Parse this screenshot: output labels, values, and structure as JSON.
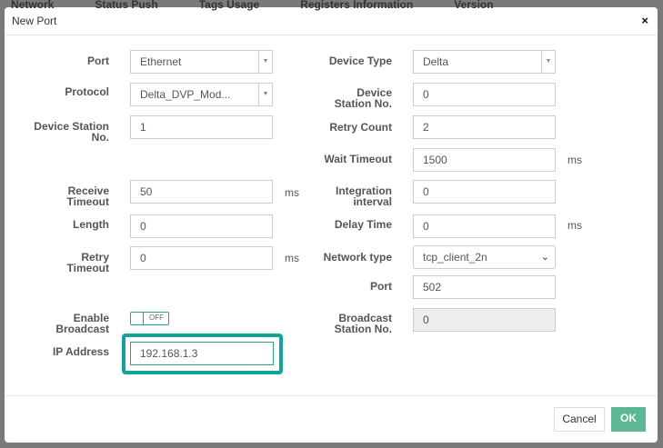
{
  "background_tabs": [
    "Network",
    "Status Push",
    "Tags Usage",
    "Registers Information",
    "Version"
  ],
  "dialog": {
    "title": "New Port",
    "close": "×"
  },
  "left": {
    "port": {
      "label": "Port",
      "value": "Ethernet"
    },
    "protocol": {
      "label": "Protocol",
      "value": "Delta_DVP_Mod..."
    },
    "device_station": {
      "label": "Device Station No.",
      "value": "1"
    },
    "receive_timeout": {
      "label": "Receive Timeout",
      "value": "50",
      "unit": "ms"
    },
    "length": {
      "label": "Length",
      "value": "0"
    },
    "retry_timeout": {
      "label": "Retry Timeout",
      "value": "0",
      "unit": "ms"
    },
    "enable_broadcast": {
      "label": "Enable Broadcast",
      "state": "OFF"
    },
    "ip_address": {
      "label": "IP Address",
      "value": "192.168.1.3"
    }
  },
  "right": {
    "device_type": {
      "label": "Device Type",
      "value": "Delta"
    },
    "device_station": {
      "label": "Device Station No.",
      "value": "0"
    },
    "retry_count": {
      "label": "Retry Count",
      "value": "2"
    },
    "wait_timeout": {
      "label": "Wait Timeout",
      "value": "1500",
      "unit": "ms"
    },
    "integration_interval": {
      "label": "Integration interval",
      "value": "0"
    },
    "delay_time": {
      "label": "Delay Time",
      "value": "0",
      "unit": "ms"
    },
    "network_type": {
      "label": "Network type",
      "value": "tcp_client_2n"
    },
    "port": {
      "label": "Port",
      "value": "502"
    },
    "broadcast_station": {
      "label": "Broadcast Station No.",
      "value": "0"
    }
  },
  "footer": {
    "cancel": "Cancel",
    "ok": "OK"
  },
  "colors": {
    "highlight": "#12a39a",
    "ok": "#5cb893"
  }
}
